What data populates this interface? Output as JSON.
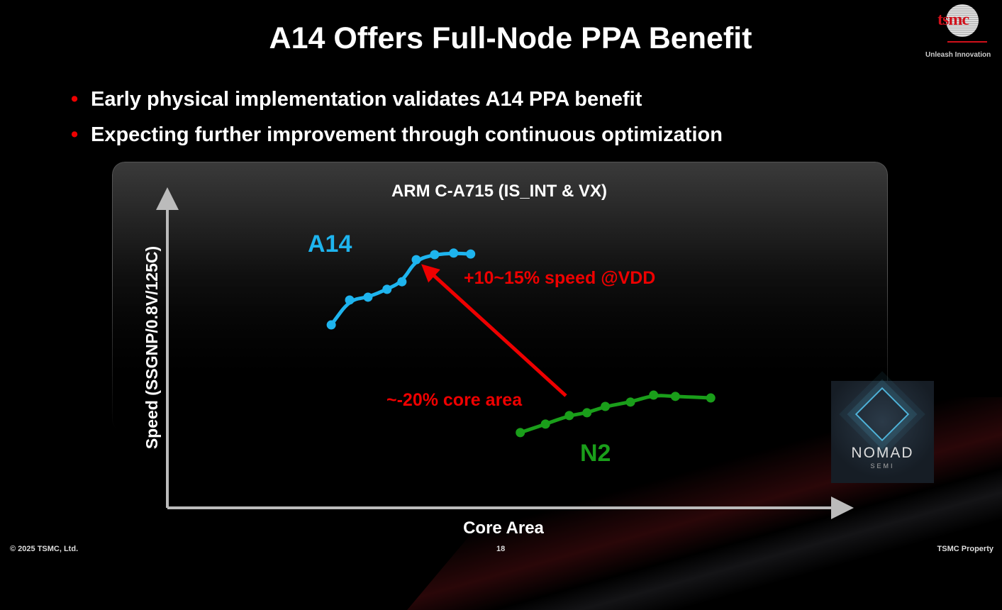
{
  "slide": {
    "title": "A14 Offers Full-Node PPA Benefit",
    "bullets": [
      "Early physical implementation validates A14 PPA benefit",
      "Expecting further improvement through continuous optimization"
    ],
    "logo": {
      "text": "tsmc",
      "tagline": "Unleash Innovation"
    },
    "watermark": {
      "name": "NOMAD",
      "sub": "SEMI"
    },
    "footer": {
      "copyright": "© 2025 TSMC, Ltd.",
      "page_number": "18",
      "property": "TSMC Property"
    },
    "colors": {
      "bullet": "#e00000",
      "a14": "#1eb4ee",
      "n2": "#1a9e1a",
      "annotation": "#e00000"
    }
  },
  "chart_data": {
    "type": "line",
    "title": "ARM C-A715 (IS_INT & VX)",
    "xlabel": "Core Area",
    "ylabel": "Speed (SSGNP/0.8V/125C)",
    "xlim": [
      0,
      100
    ],
    "ylim": [
      0,
      100
    ],
    "units_note_visible": false,
    "grid": false,
    "series": [
      {
        "name": "A14",
        "color": "#1eb4ee",
        "points": [
          [
            24.1,
            58.1
          ],
          [
            26.8,
            66.0
          ],
          [
            29.5,
            66.9
          ],
          [
            32.3,
            69.4
          ],
          [
            34.5,
            71.8
          ],
          [
            36.6,
            78.8
          ],
          [
            39.3,
            80.4
          ],
          [
            42.1,
            80.9
          ],
          [
            44.6,
            80.6
          ]
        ]
      },
      {
        "name": "N2",
        "color": "#1a9e1a",
        "points": [
          [
            51.9,
            23.9
          ],
          [
            55.6,
            26.6
          ],
          [
            59.1,
            29.3
          ],
          [
            61.7,
            30.2
          ],
          [
            64.4,
            32.2
          ],
          [
            68.1,
            33.6
          ],
          [
            71.5,
            35.8
          ],
          [
            74.7,
            35.4
          ],
          [
            79.9,
            34.9
          ]
        ]
      }
    ],
    "annotations": {
      "speed": "+10~15% speed @VDD",
      "area": "~-20% core area",
      "arrow_from": [
        58.6,
        35.6
      ],
      "arrow_to": [
        38.3,
        75.5
      ]
    }
  }
}
